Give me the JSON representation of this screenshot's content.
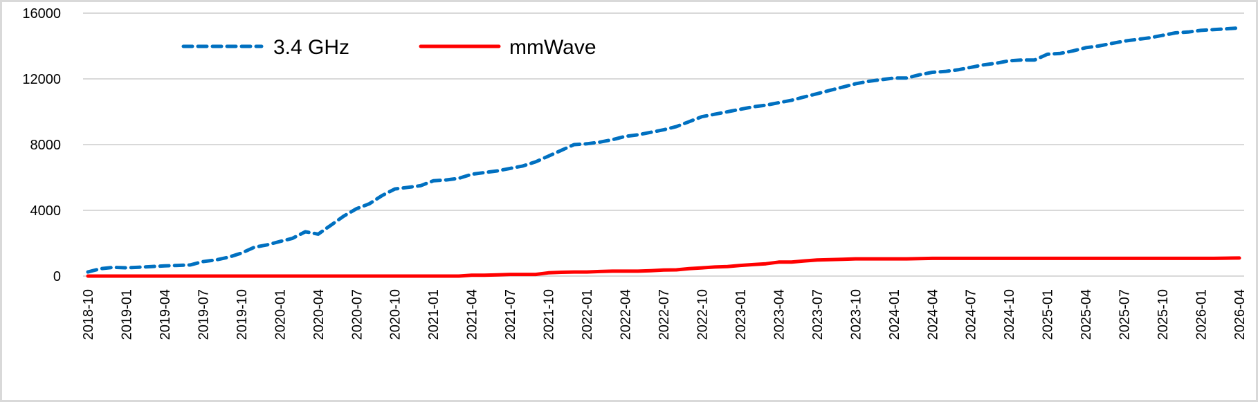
{
  "chart_data": {
    "type": "line",
    "title": "",
    "xlabel": "",
    "ylabel": "",
    "x_start": "2018-10",
    "x_end": "2026-04",
    "x_interval": "monthly",
    "x_tick_labels": [
      "2018-10",
      "2019-01",
      "2019-04",
      "2019-07",
      "2019-10",
      "2020-01",
      "2020-04",
      "2020-07",
      "2020-10",
      "2021-01",
      "2021-04",
      "2021-07",
      "2021-10",
      "2022-01",
      "2022-04",
      "2022-07",
      "2022-10",
      "2023-01",
      "2023-04",
      "2023-07",
      "2023-10",
      "2024-01",
      "2024-04",
      "2024-07",
      "2024-10",
      "2025-01",
      "2025-04",
      "2025-07",
      "2025-10",
      "2026-01",
      "2026-04"
    ],
    "ylim": [
      0,
      16000
    ],
    "y_ticks": [
      0,
      4000,
      8000,
      12000,
      16000
    ],
    "grid": "horizontal",
    "legend_position": "top-left",
    "series": [
      {
        "name": "3.4 GHz",
        "color": "#0070C0",
        "style": "dashed",
        "values": [
          250,
          450,
          530,
          500,
          540,
          580,
          620,
          650,
          680,
          880,
          980,
          1150,
          1400,
          1750,
          1900,
          2100,
          2300,
          2700,
          2550,
          3100,
          3650,
          4100,
          4400,
          4900,
          5300,
          5400,
          5500,
          5800,
          5850,
          5950,
          6200,
          6300,
          6400,
          6550,
          6700,
          6950,
          7300,
          7650,
          8000,
          8050,
          8150,
          8300,
          8500,
          8600,
          8750,
          8900,
          9100,
          9400,
          9700,
          9850,
          10000,
          10150,
          10300,
          10400,
          10550,
          10700,
          10900,
          11100,
          11300,
          11500,
          11700,
          11850,
          11950,
          12050,
          12050,
          12250,
          12400,
          12450,
          12550,
          12700,
          12850,
          12950,
          13100,
          13150,
          13150,
          13500,
          13550,
          13700,
          13900,
          14000,
          14150,
          14300,
          14400,
          14500,
          14650,
          14800,
          14850,
          14950,
          15000,
          15050,
          15100
        ]
      },
      {
        "name": "mmWave",
        "color": "#FF0000",
        "style": "solid",
        "values": [
          0,
          0,
          0,
          0,
          0,
          0,
          0,
          0,
          0,
          0,
          0,
          0,
          0,
          0,
          0,
          0,
          0,
          0,
          0,
          0,
          0,
          0,
          0,
          0,
          0,
          0,
          0,
          0,
          0,
          0,
          50,
          50,
          75,
          100,
          100,
          100,
          200,
          230,
          250,
          250,
          280,
          300,
          300,
          300,
          330,
          370,
          380,
          450,
          500,
          550,
          580,
          650,
          700,
          750,
          850,
          850,
          920,
          980,
          1000,
          1020,
          1050,
          1050,
          1050,
          1050,
          1050,
          1060,
          1080,
          1080,
          1080,
          1080,
          1080,
          1080,
          1080,
          1080,
          1080,
          1080,
          1080,
          1080,
          1080,
          1080,
          1080,
          1080,
          1080,
          1080,
          1080,
          1080,
          1080,
          1080,
          1080,
          1090,
          1100
        ]
      }
    ]
  }
}
